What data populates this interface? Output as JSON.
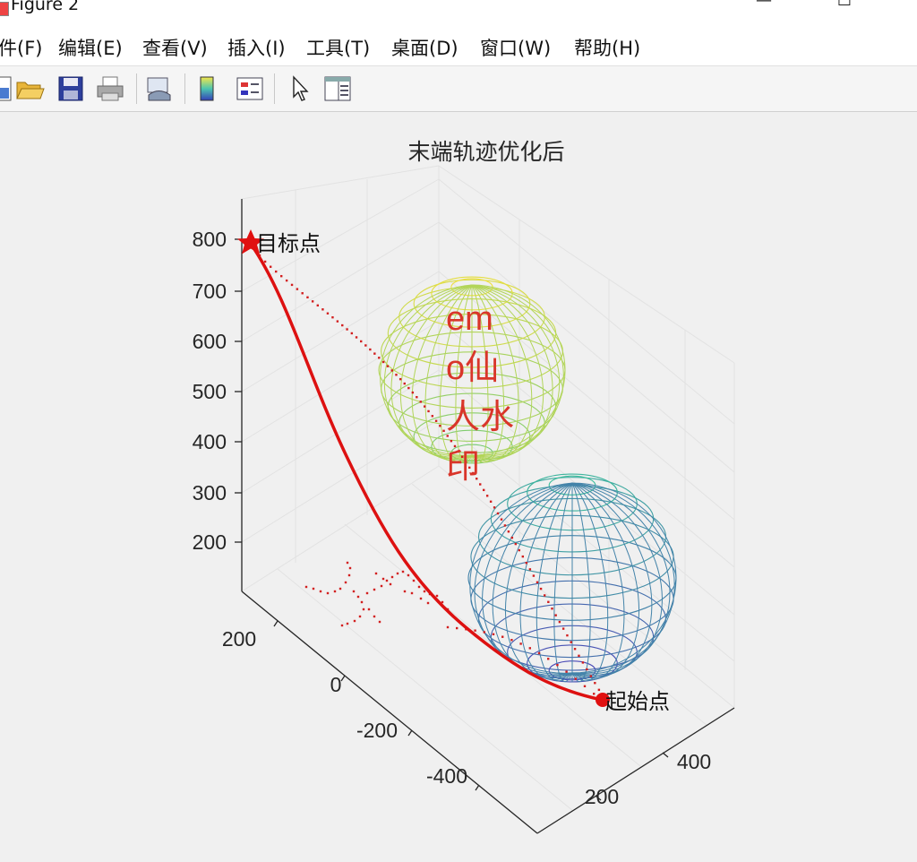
{
  "window": {
    "title": "Figure 2",
    "minimize_glyph": "—",
    "maximize_glyph": "☐"
  },
  "menu": [
    {
      "label": "件(F)"
    },
    {
      "label": "编辑(E)"
    },
    {
      "label": "查看(V)"
    },
    {
      "label": "插入(I)"
    },
    {
      "label": "工具(T)"
    },
    {
      "label": "桌面(D)"
    },
    {
      "label": "窗口(W)"
    },
    {
      "label": "帮助(H)"
    }
  ],
  "toolbar": [
    {
      "icon": "new-figure-icon"
    },
    {
      "icon": "open-folder-icon"
    },
    {
      "icon": "save-icon"
    },
    {
      "icon": "print-icon"
    },
    {
      "icon": "link-plot-icon"
    },
    {
      "icon": "colorbar-icon"
    },
    {
      "icon": "legend-icon"
    },
    {
      "icon": "pointer-icon"
    },
    {
      "icon": "property-inspector-icon"
    }
  ],
  "chart_data": {
    "type": "line",
    "title": "末端轨迹优化后",
    "xlabel": "",
    "ylabel": "",
    "zlabel": "",
    "z_ticks": [
      800,
      700,
      600,
      500,
      400,
      300,
      200
    ],
    "y_ticks": [
      200,
      0,
      -200,
      -400
    ],
    "x_ticks": [
      400,
      200
    ],
    "annotations": [
      {
        "text": "目标点",
        "marker": "star"
      },
      {
        "text": "起始点",
        "marker": "circle"
      }
    ],
    "watermark": "emo仙人水印",
    "colors": {
      "trajectory": "#dd1111",
      "sphere_upper": "#e8d23c",
      "sphere_lower": "#26b0b8"
    },
    "grid": true
  }
}
